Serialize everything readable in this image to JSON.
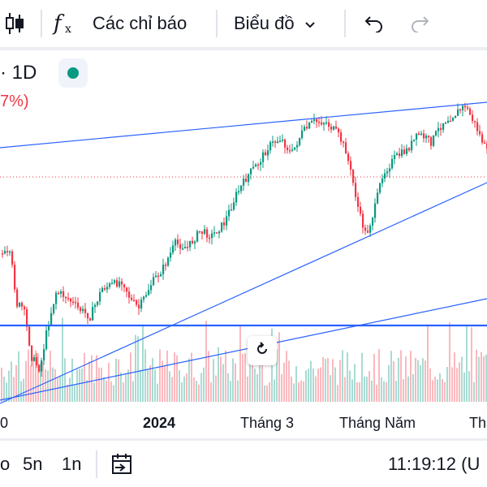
{
  "toolbar": {
    "indicators_label": "Các chỉ báo",
    "chart_type_label": "Biểu đồ",
    "fx_glyph": "f",
    "fx_sub": "x"
  },
  "legend": {
    "interval": "· 1D",
    "change": "7%)",
    "status_color": "#089981"
  },
  "time_axis": {
    "labels": [
      "0",
      "2024",
      "Tháng 3",
      "Tháng Năm",
      "Thá"
    ]
  },
  "bottom_bar": {
    "ranges": [
      "o",
      "5n",
      "1n"
    ],
    "clock": "11:19:12 (U"
  },
  "colors": {
    "up": "#089981",
    "down": "#f23645",
    "trendline": "#2962ff",
    "horizontal_line": "#2962ff",
    "price_line": "#f23645"
  },
  "chart_data": {
    "type": "candlestick",
    "x_ticks": [
      "0",
      "2024",
      "Tháng 3",
      "Tháng Năm",
      "Thá"
    ],
    "drawings": [
      "rising wedge trendlines",
      "horizontal support line",
      "dotted last-price line"
    ],
    "volume_histogram": true
  }
}
